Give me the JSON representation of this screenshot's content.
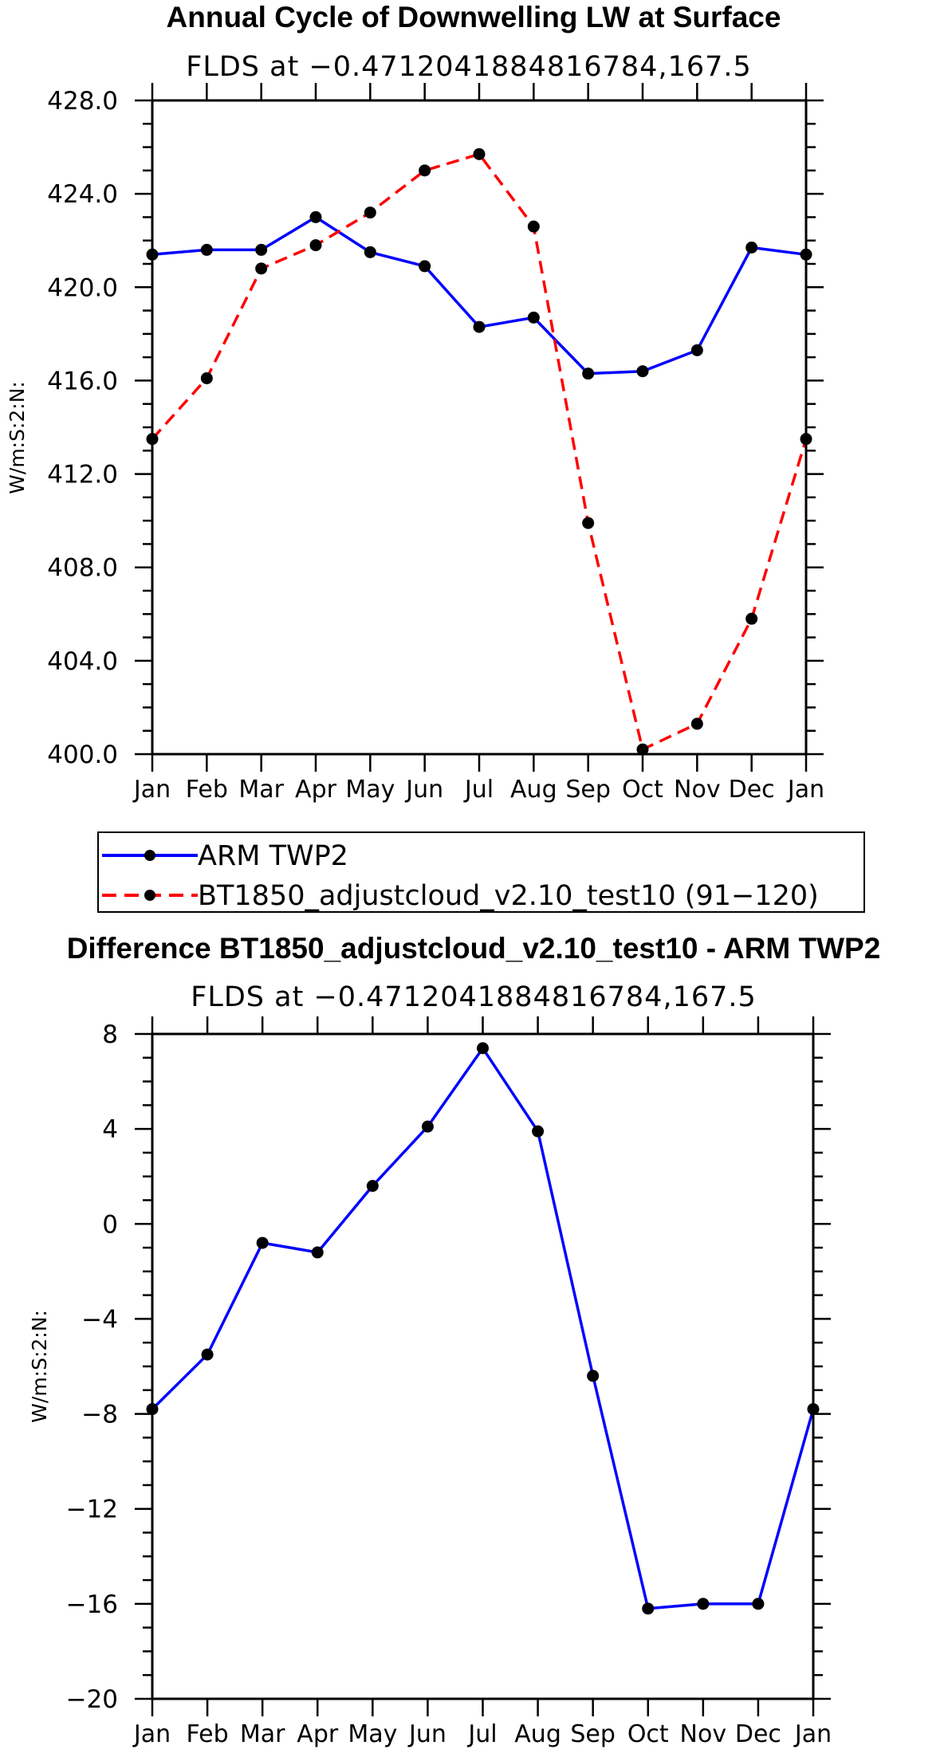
{
  "chart_data": [
    {
      "type": "line",
      "title": "Annual Cycle of Downwelling LW at Surface",
      "subtitle": "FLDS at −0.4712041884816784,167.5",
      "ylabel": "W/m:S:2:N:",
      "xlabel": "",
      "ylim": [
        400,
        428
      ],
      "yticks": [
        400,
        404,
        408,
        412,
        416,
        420,
        424,
        428
      ],
      "ytick_labels": [
        "400.0",
        "404.0",
        "408.0",
        "412.0",
        "416.0",
        "420.0",
        "424.0",
        "428.0"
      ],
      "categories": [
        "Jan",
        "Feb",
        "Mar",
        "Apr",
        "May",
        "Jun",
        "Jul",
        "Aug",
        "Sep",
        "Oct",
        "Nov",
        "Dec",
        "Jan"
      ],
      "series": [
        {
          "name": "ARM TWP2",
          "color": "#0000ff",
          "dash": false,
          "values": [
            421.4,
            421.6,
            421.6,
            423.0,
            421.5,
            420.9,
            418.3,
            418.7,
            416.3,
            416.4,
            417.3,
            421.7,
            421.4
          ]
        },
        {
          "name": "BT1850_adjustcloud_v2.10_test10 (91−120)",
          "color": "#ff0000",
          "dash": true,
          "values": [
            413.5,
            416.1,
            420.8,
            421.8,
            423.2,
            425.0,
            425.7,
            422.6,
            409.9,
            400.2,
            401.3,
            405.8,
            413.5
          ]
        }
      ],
      "legend": "below"
    },
    {
      "type": "line",
      "title": "Difference BT1850_adjustcloud_v2.10_test10 - ARM TWP2",
      "subtitle": "FLDS at −0.4712041884816784,167.5",
      "ylabel": "W/m:S:2:N:",
      "xlabel": "",
      "ylim": [
        -20,
        8
      ],
      "yticks": [
        -20,
        -16,
        -12,
        -8,
        -4,
        0,
        4,
        8
      ],
      "ytick_labels": [
        "−20",
        "−16",
        "−12",
        "−8",
        "−4",
        "0",
        "4",
        "8"
      ],
      "categories": [
        "Jan",
        "Feb",
        "Mar",
        "Apr",
        "May",
        "Jun",
        "Jul",
        "Aug",
        "Sep",
        "Oct",
        "Nov",
        "Dec",
        "Jan"
      ],
      "series": [
        {
          "name": "Difference",
          "color": "#0000ff",
          "dash": false,
          "values": [
            -7.8,
            -5.5,
            -0.8,
            -1.2,
            1.6,
            4.1,
            7.4,
            3.9,
            -6.4,
            -16.2,
            -16.0,
            -16.0,
            -7.8
          ]
        }
      ]
    }
  ]
}
